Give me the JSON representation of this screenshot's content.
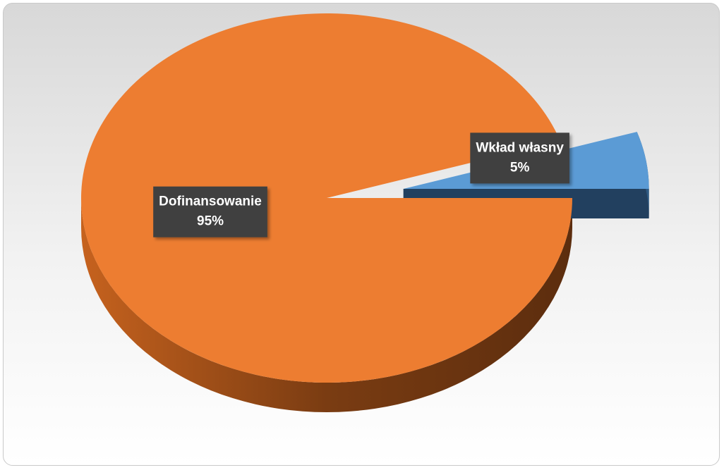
{
  "chart_data": {
    "type": "pie",
    "categories": [
      "Dofinansowanie",
      "Wkład własny"
    ],
    "values": [
      95,
      5
    ],
    "value_labels": [
      "95%",
      "5%"
    ],
    "colors": [
      "#ed7d31",
      "#5b9bd5"
    ]
  }
}
